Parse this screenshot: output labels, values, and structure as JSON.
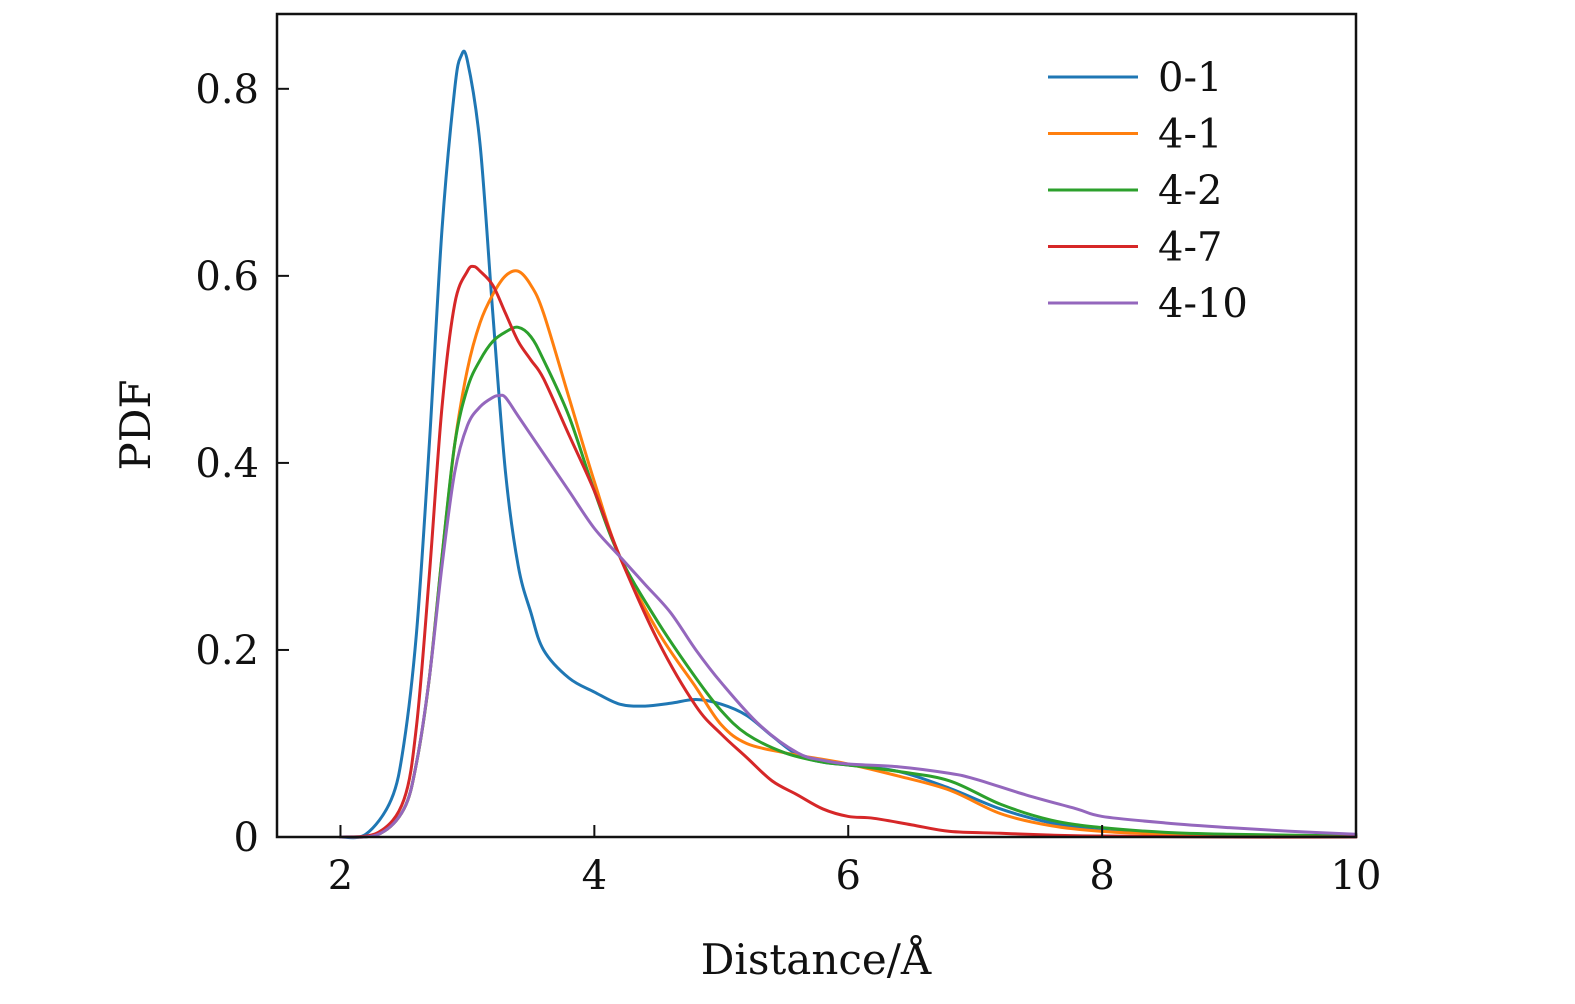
{
  "chart_data": {
    "type": "line",
    "title": "",
    "xlabel": "Distance/Å",
    "ylabel": "PDF",
    "xlim": [
      1.5,
      10
    ],
    "ylim": [
      0,
      0.88
    ],
    "xticks": [
      2,
      4,
      6,
      8,
      10
    ],
    "xtick_labels": [
      "2",
      "4",
      "6",
      "8",
      "10"
    ],
    "yticks": [
      0,
      0.2,
      0.4,
      0.6,
      0.8
    ],
    "ytick_labels": [
      "0",
      "0.2",
      "0.4",
      "0.6",
      "0.8"
    ],
    "grid": false,
    "legend_position": "top-right",
    "series": [
      {
        "name": "0-1",
        "color": "#1f77b4",
        "x": [
          2.0,
          2.2,
          2.4,
          2.5,
          2.6,
          2.7,
          2.8,
          2.9,
          2.95,
          3.0,
          3.1,
          3.2,
          3.3,
          3.4,
          3.5,
          3.6,
          3.8,
          4.0,
          4.2,
          4.4,
          4.6,
          4.8,
          5.0,
          5.2,
          5.4,
          5.6,
          5.8,
          6.0,
          6.4,
          6.8,
          7.2,
          7.6,
          8.0,
          8.5,
          9.0,
          10.0
        ],
        "y": [
          0.0,
          0.003,
          0.04,
          0.1,
          0.22,
          0.42,
          0.65,
          0.8,
          0.835,
          0.83,
          0.74,
          0.56,
          0.39,
          0.29,
          0.24,
          0.2,
          0.17,
          0.155,
          0.142,
          0.14,
          0.143,
          0.147,
          0.142,
          0.13,
          0.108,
          0.088,
          0.08,
          0.077,
          0.07,
          0.052,
          0.03,
          0.015,
          0.007,
          0.003,
          0.002,
          0.001
        ]
      },
      {
        "name": "4-1",
        "color": "#ff7f0e",
        "x": [
          2.0,
          2.3,
          2.5,
          2.6,
          2.7,
          2.8,
          2.9,
          3.0,
          3.1,
          3.2,
          3.3,
          3.4,
          3.5,
          3.6,
          3.8,
          4.0,
          4.2,
          4.5,
          4.8,
          5.0,
          5.2,
          5.5,
          5.8,
          6.0,
          6.4,
          6.8,
          7.2,
          7.6,
          8.0,
          8.5,
          9.0,
          10.0
        ],
        "y": [
          0.0,
          0.003,
          0.03,
          0.08,
          0.17,
          0.3,
          0.42,
          0.5,
          0.55,
          0.58,
          0.6,
          0.605,
          0.59,
          0.56,
          0.47,
          0.38,
          0.3,
          0.22,
          0.16,
          0.12,
          0.1,
          0.09,
          0.083,
          0.078,
          0.065,
          0.05,
          0.025,
          0.012,
          0.006,
          0.003,
          0.002,
          0.001
        ]
      },
      {
        "name": "4-2",
        "color": "#2ca02c",
        "x": [
          2.0,
          2.3,
          2.5,
          2.6,
          2.7,
          2.8,
          2.9,
          3.0,
          3.1,
          3.2,
          3.3,
          3.4,
          3.5,
          3.6,
          3.8,
          4.0,
          4.2,
          4.5,
          4.8,
          5.0,
          5.2,
          5.5,
          5.8,
          6.0,
          6.4,
          6.8,
          7.2,
          7.6,
          8.0,
          8.5,
          9.0,
          10.0
        ],
        "y": [
          0.0,
          0.003,
          0.03,
          0.08,
          0.17,
          0.3,
          0.42,
          0.48,
          0.51,
          0.53,
          0.54,
          0.545,
          0.535,
          0.51,
          0.45,
          0.37,
          0.3,
          0.23,
          0.17,
          0.135,
          0.11,
          0.09,
          0.08,
          0.077,
          0.07,
          0.06,
          0.035,
          0.018,
          0.01,
          0.005,
          0.003,
          0.001
        ]
      },
      {
        "name": "4-7",
        "color": "#d62728",
        "x": [
          2.0,
          2.3,
          2.5,
          2.6,
          2.7,
          2.8,
          2.9,
          3.0,
          3.05,
          3.1,
          3.2,
          3.3,
          3.4,
          3.5,
          3.6,
          3.8,
          4.0,
          4.2,
          4.5,
          4.8,
          5.0,
          5.2,
          5.4,
          5.6,
          5.8,
          6.0,
          6.2,
          6.5,
          6.8,
          7.2,
          7.6,
          8.0,
          9.0,
          10.0
        ],
        "y": [
          0.0,
          0.005,
          0.04,
          0.12,
          0.28,
          0.46,
          0.57,
          0.605,
          0.61,
          0.605,
          0.59,
          0.56,
          0.53,
          0.51,
          0.49,
          0.43,
          0.37,
          0.3,
          0.21,
          0.14,
          0.11,
          0.085,
          0.06,
          0.045,
          0.03,
          0.022,
          0.02,
          0.013,
          0.006,
          0.004,
          0.002,
          0.001,
          0.0,
          0.0
        ]
      },
      {
        "name": "4-10",
        "color": "#9467bd",
        "x": [
          2.0,
          2.3,
          2.5,
          2.6,
          2.7,
          2.8,
          2.9,
          3.0,
          3.1,
          3.2,
          3.25,
          3.3,
          3.4,
          3.6,
          3.8,
          4.0,
          4.2,
          4.4,
          4.6,
          4.8,
          5.0,
          5.3,
          5.6,
          5.8,
          6.0,
          6.4,
          6.8,
          7.0,
          7.4,
          7.8,
          8.0,
          8.5,
          9.0,
          9.5,
          10.0
        ],
        "y": [
          0.0,
          0.003,
          0.03,
          0.08,
          0.17,
          0.29,
          0.39,
          0.44,
          0.46,
          0.47,
          0.472,
          0.47,
          0.45,
          0.41,
          0.37,
          0.33,
          0.3,
          0.27,
          0.24,
          0.2,
          0.165,
          0.12,
          0.09,
          0.082,
          0.078,
          0.075,
          0.068,
          0.062,
          0.045,
          0.03,
          0.022,
          0.015,
          0.01,
          0.006,
          0.003
        ]
      }
    ]
  }
}
